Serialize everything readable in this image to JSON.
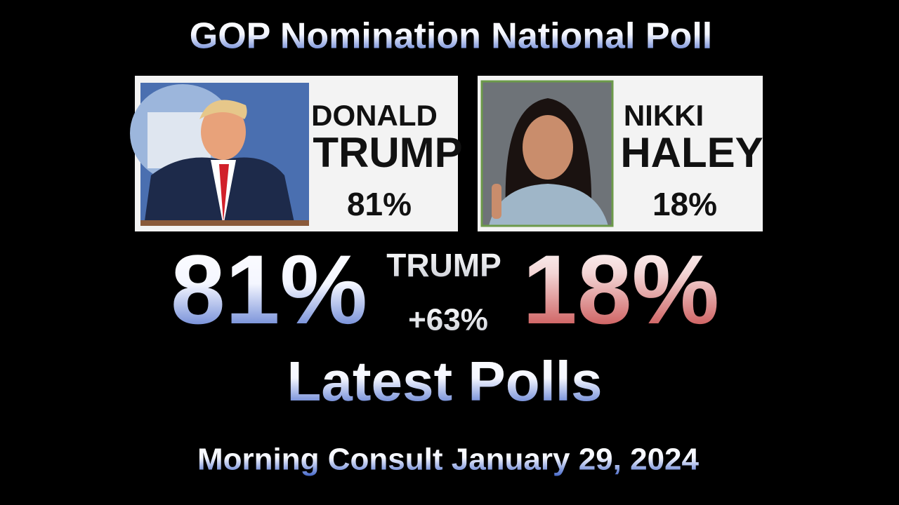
{
  "title": "GOP Nomination National Poll",
  "cards": [
    {
      "first_name": "DONALD",
      "last_name": "TRUMP",
      "percent": "81%"
    },
    {
      "first_name": "NIKKI",
      "last_name": "HALEY",
      "percent": "18%"
    }
  ],
  "headline": {
    "left": "81%",
    "leader": "TRUMP",
    "margin": "+63%",
    "right": "18%"
  },
  "subtitle": "Latest Polls",
  "source": "Morning Consult January 29, 2024"
}
